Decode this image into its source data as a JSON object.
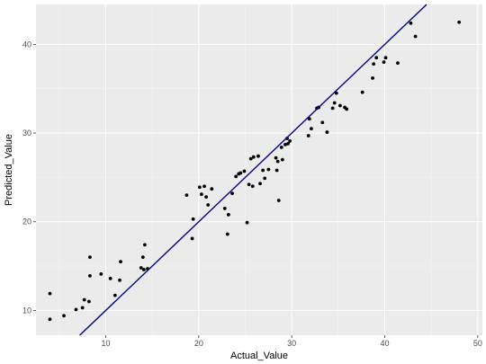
{
  "chart_data": {
    "type": "scatter",
    "title": "",
    "xlabel": "Actual_Value",
    "ylabel": "Predicted_Value",
    "xlim": [
      2.5,
      50.5
    ],
    "ylim": [
      7.2,
      44.5
    ],
    "x_ticks": [
      10,
      20,
      30,
      40,
      50
    ],
    "y_ticks": [
      10,
      20,
      30,
      40
    ],
    "grid": true,
    "legend": "none",
    "colors": {
      "panel": "#ebebeb",
      "grid_major": "#ffffff",
      "grid_minor": "#f5f5f5",
      "points": "#000000",
      "line": "#00008b"
    },
    "reference_line": {
      "type": "identity",
      "slope": 1,
      "intercept": 0
    },
    "points": [
      {
        "x": 4.0,
        "y": 11.9
      },
      {
        "x": 4.0,
        "y": 9.0
      },
      {
        "x": 5.5,
        "y": 9.4
      },
      {
        "x": 6.8,
        "y": 10.1
      },
      {
        "x": 7.5,
        "y": 10.3
      },
      {
        "x": 7.7,
        "y": 11.2
      },
      {
        "x": 8.2,
        "y": 11.0
      },
      {
        "x": 8.3,
        "y": 13.9
      },
      {
        "x": 8.3,
        "y": 16.0
      },
      {
        "x": 9.5,
        "y": 14.1
      },
      {
        "x": 10.5,
        "y": 13.6
      },
      {
        "x": 11.0,
        "y": 11.7
      },
      {
        "x": 11.5,
        "y": 13.4
      },
      {
        "x": 11.6,
        "y": 15.5
      },
      {
        "x": 13.8,
        "y": 14.8
      },
      {
        "x": 14.0,
        "y": 16.0
      },
      {
        "x": 14.1,
        "y": 14.6
      },
      {
        "x": 14.2,
        "y": 17.4
      },
      {
        "x": 14.5,
        "y": 14.7
      },
      {
        "x": 18.7,
        "y": 23.0
      },
      {
        "x": 19.3,
        "y": 18.1
      },
      {
        "x": 19.4,
        "y": 20.3
      },
      {
        "x": 20.1,
        "y": 23.9
      },
      {
        "x": 20.3,
        "y": 23.1
      },
      {
        "x": 20.6,
        "y": 24.0
      },
      {
        "x": 20.8,
        "y": 22.8
      },
      {
        "x": 21.0,
        "y": 21.9
      },
      {
        "x": 21.4,
        "y": 23.7
      },
      {
        "x": 22.8,
        "y": 21.5
      },
      {
        "x": 23.1,
        "y": 18.6
      },
      {
        "x": 23.2,
        "y": 20.8
      },
      {
        "x": 23.6,
        "y": 23.2
      },
      {
        "x": 24.0,
        "y": 25.1
      },
      {
        "x": 24.3,
        "y": 25.4
      },
      {
        "x": 24.5,
        "y": 25.5
      },
      {
        "x": 24.9,
        "y": 25.7
      },
      {
        "x": 25.2,
        "y": 19.9
      },
      {
        "x": 25.4,
        "y": 24.2
      },
      {
        "x": 25.6,
        "y": 27.1
      },
      {
        "x": 25.8,
        "y": 24.0
      },
      {
        "x": 25.9,
        "y": 27.3
      },
      {
        "x": 26.4,
        "y": 27.4
      },
      {
        "x": 26.6,
        "y": 24.3
      },
      {
        "x": 26.9,
        "y": 25.8
      },
      {
        "x": 27.1,
        "y": 24.9
      },
      {
        "x": 27.5,
        "y": 25.9
      },
      {
        "x": 28.3,
        "y": 27.2
      },
      {
        "x": 28.4,
        "y": 25.8
      },
      {
        "x": 28.5,
        "y": 26.8
      },
      {
        "x": 28.6,
        "y": 22.4
      },
      {
        "x": 28.9,
        "y": 28.4
      },
      {
        "x": 29.0,
        "y": 27.0
      },
      {
        "x": 29.3,
        "y": 28.7
      },
      {
        "x": 29.5,
        "y": 29.4
      },
      {
        "x": 29.6,
        "y": 28.8
      },
      {
        "x": 29.8,
        "y": 29.1
      },
      {
        "x": 31.8,
        "y": 29.7
      },
      {
        "x": 31.9,
        "y": 31.6
      },
      {
        "x": 32.1,
        "y": 30.5
      },
      {
        "x": 32.7,
        "y": 32.8
      },
      {
        "x": 32.9,
        "y": 32.9
      },
      {
        "x": 33.3,
        "y": 31.2
      },
      {
        "x": 33.8,
        "y": 30.1
      },
      {
        "x": 34.4,
        "y": 32.8
      },
      {
        "x": 34.6,
        "y": 33.4
      },
      {
        "x": 34.8,
        "y": 34.5
      },
      {
        "x": 35.2,
        "y": 33.1
      },
      {
        "x": 35.7,
        "y": 32.9
      },
      {
        "x": 35.9,
        "y": 32.7
      },
      {
        "x": 37.6,
        "y": 34.6
      },
      {
        "x": 38.7,
        "y": 36.2
      },
      {
        "x": 38.8,
        "y": 37.8
      },
      {
        "x": 39.1,
        "y": 38.5
      },
      {
        "x": 39.9,
        "y": 38.0
      },
      {
        "x": 40.1,
        "y": 38.5
      },
      {
        "x": 41.4,
        "y": 37.9
      },
      {
        "x": 42.8,
        "y": 42.4
      },
      {
        "x": 43.3,
        "y": 40.9
      },
      {
        "x": 48.0,
        "y": 42.5
      }
    ]
  }
}
